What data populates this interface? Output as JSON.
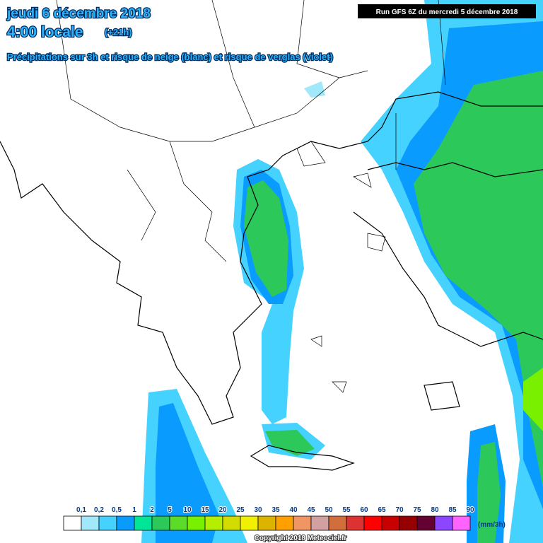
{
  "header": {
    "date": "jeudi 6 décembre 2018",
    "time": "4:00 locale",
    "offset": "(+21h)",
    "description": "Précipitations sur 3h et risque de neige (blanc) et risque de verglas (violet)",
    "run": "Run GFS 6Z du mercredi 5 décembre 2018"
  },
  "legend": {
    "labels": [
      "0,1",
      "0,2",
      "0,5",
      "1",
      "2",
      "5",
      "10",
      "15",
      "20",
      "25",
      "30",
      "35",
      "40",
      "45",
      "50",
      "55",
      "60",
      "65",
      "70",
      "75",
      "80",
      "85",
      "90"
    ],
    "colors": [
      "#ffffff",
      "#a0e8fa",
      "#46d2ff",
      "#0a9bff",
      "#00e696",
      "#2dc85a",
      "#5adc28",
      "#78f000",
      "#b4ee00",
      "#d2dc00",
      "#f0f000",
      "#dcb400",
      "#ffa000",
      "#f09664",
      "#d2a0a0",
      "#d26e3c",
      "#dc3232",
      "#ff0000",
      "#c80000",
      "#960000",
      "#640032",
      "#8c46ff",
      "#ff64ff"
    ],
    "unit": "(mm/3h)"
  },
  "footer": {
    "copyright": "Copyright 2018 Meteociel.fr"
  }
}
